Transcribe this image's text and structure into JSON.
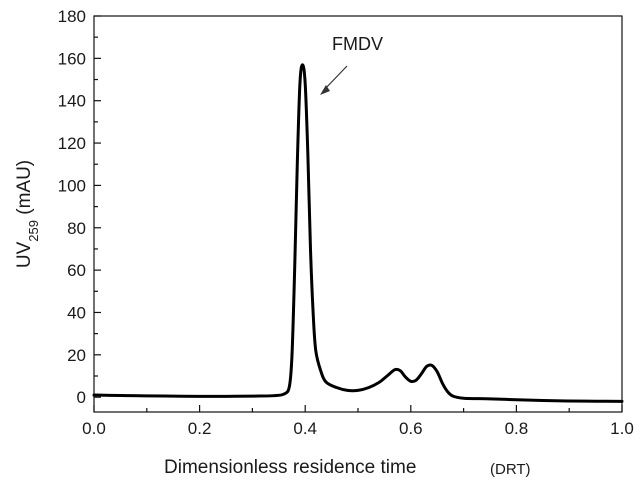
{
  "chart_data": {
    "type": "line",
    "xlabel": "Dimensionless residence time",
    "xlabel_note": "(DRT)",
    "ylabel_prefix": "UV",
    "ylabel_subscript": "259",
    "ylabel_suffix": " (mAU)",
    "xlim": [
      0.0,
      1.0
    ],
    "ylim": [
      -7,
      180
    ],
    "xticks": [
      "0.0",
      "0.2",
      "0.4",
      "0.6",
      "0.8",
      "1.0"
    ],
    "yticks": [
      "0",
      "20",
      "40",
      "60",
      "80",
      "100",
      "120",
      "140",
      "160",
      "180"
    ],
    "grid": false,
    "annotations": [
      {
        "text": "FMDV",
        "x": 0.395,
        "y": 157
      }
    ],
    "series": [
      {
        "x": [
          0.0,
          0.05,
          0.1,
          0.15,
          0.2,
          0.25,
          0.3,
          0.34,
          0.36,
          0.37,
          0.375,
          0.38,
          0.385,
          0.39,
          0.395,
          0.4,
          0.405,
          0.41,
          0.415,
          0.42,
          0.43,
          0.44,
          0.46,
          0.48,
          0.5,
          0.52,
          0.54,
          0.555,
          0.57,
          0.58,
          0.59,
          0.6,
          0.61,
          0.62,
          0.63,
          0.64,
          0.65,
          0.66,
          0.67,
          0.68,
          0.7,
          0.75,
          0.8,
          0.85,
          0.9,
          0.95,
          1.0
        ],
        "y": [
          1.0,
          0.8,
          0.6,
          0.5,
          0.4,
          0.4,
          0.5,
          0.7,
          1.5,
          5,
          20,
          60,
          110,
          148,
          157,
          148,
          115,
          70,
          40,
          22,
          12,
          7,
          4.5,
          3.2,
          3.2,
          4.5,
          7,
          10,
          13,
          12.5,
          9.5,
          7.5,
          8,
          11,
          14.5,
          15,
          12,
          6.5,
          2.5,
          0.5,
          -0.5,
          -0.8,
          -1.2,
          -1.6,
          -1.8,
          -1.9,
          -2.0
        ]
      }
    ]
  }
}
